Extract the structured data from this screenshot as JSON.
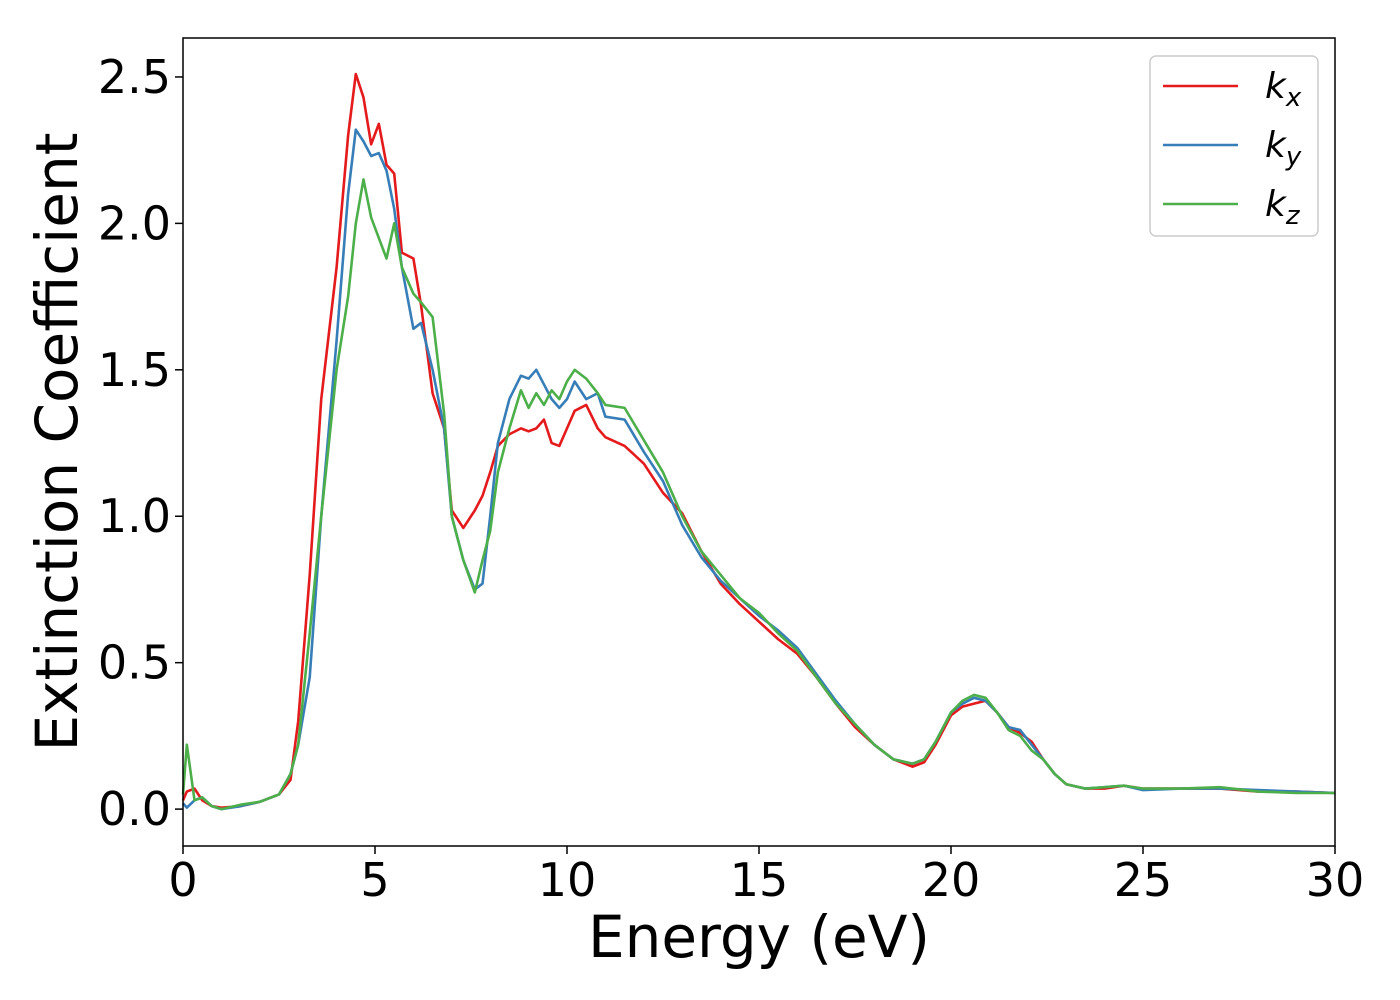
{
  "chart_data": {
    "type": "line",
    "xlabel": "Energy (eV)",
    "ylabel": "Extinction Coefficient",
    "x": [
      0,
      0.1,
      0.3,
      0.5,
      0.75,
      1,
      1.5,
      2,
      2.5,
      2.8,
      3,
      3.3,
      3.6,
      4,
      4.3,
      4.5,
      4.7,
      4.9,
      5.1,
      5.3,
      5.5,
      5.7,
      6,
      6.2,
      6.5,
      6.8,
      7,
      7.3,
      7.6,
      7.8,
      8,
      8.2,
      8.5,
      8.8,
      9,
      9.2,
      9.4,
      9.6,
      9.8,
      10,
      10.2,
      10.5,
      10.8,
      11,
      11.5,
      12,
      12.5,
      13,
      13.5,
      14,
      14.5,
      15,
      15.5,
      16,
      16.5,
      17,
      17.5,
      18,
      18.5,
      19,
      19.3,
      19.6,
      20,
      20.3,
      20.6,
      20.9,
      21.2,
      21.5,
      21.8,
      22.1,
      22.4,
      22.7,
      23,
      23.5,
      24,
      24.5,
      25,
      26,
      27,
      28,
      29,
      30
    ],
    "series": [
      {
        "name": "kx",
        "color": "#e41a1c",
        "values": [
          0.03,
          0.06,
          0.07,
          0.03,
          0.01,
          0.005,
          0.01,
          0.025,
          0.05,
          0.1,
          0.3,
          0.8,
          1.4,
          1.85,
          2.3,
          2.51,
          2.43,
          2.27,
          2.34,
          2.2,
          2.17,
          1.9,
          1.88,
          1.72,
          1.42,
          1.3,
          1.02,
          0.96,
          1.02,
          1.07,
          1.15,
          1.24,
          1.28,
          1.3,
          1.29,
          1.3,
          1.33,
          1.25,
          1.24,
          1.3,
          1.36,
          1.38,
          1.3,
          1.27,
          1.24,
          1.18,
          1.08,
          1.01,
          0.88,
          0.77,
          0.7,
          0.64,
          0.58,
          0.53,
          0.45,
          0.36,
          0.28,
          0.22,
          0.17,
          0.145,
          0.16,
          0.22,
          0.32,
          0.35,
          0.36,
          0.37,
          0.33,
          0.28,
          0.26,
          0.23,
          0.17,
          0.12,
          0.085,
          0.07,
          0.07,
          0.08,
          0.07,
          0.07,
          0.07,
          0.06,
          0.06,
          0.055
        ]
      },
      {
        "name": "ky",
        "color": "#377eb8",
        "values": [
          0.02,
          0.005,
          0.03,
          0.04,
          0.01,
          0.0,
          0.01,
          0.025,
          0.05,
          0.12,
          0.22,
          0.45,
          1.0,
          1.6,
          2.1,
          2.32,
          2.28,
          2.23,
          2.24,
          2.18,
          2.05,
          1.85,
          1.64,
          1.66,
          1.5,
          1.3,
          1.0,
          0.85,
          0.75,
          0.77,
          1.0,
          1.25,
          1.4,
          1.48,
          1.47,
          1.5,
          1.45,
          1.4,
          1.37,
          1.4,
          1.46,
          1.4,
          1.42,
          1.34,
          1.33,
          1.22,
          1.12,
          0.97,
          0.86,
          0.78,
          0.72,
          0.66,
          0.61,
          0.55,
          0.46,
          0.37,
          0.29,
          0.22,
          0.17,
          0.155,
          0.17,
          0.23,
          0.33,
          0.36,
          0.38,
          0.37,
          0.33,
          0.28,
          0.27,
          0.22,
          0.17,
          0.12,
          0.085,
          0.07,
          0.075,
          0.08,
          0.065,
          0.07,
          0.07,
          0.065,
          0.06,
          0.055
        ]
      },
      {
        "name": "kz",
        "color": "#4daf4a",
        "values": [
          0.05,
          0.22,
          0.03,
          0.04,
          0.01,
          0.0,
          0.015,
          0.025,
          0.05,
          0.12,
          0.22,
          0.6,
          1.0,
          1.5,
          1.75,
          2.0,
          2.15,
          2.02,
          1.95,
          1.88,
          2.0,
          1.85,
          1.76,
          1.73,
          1.68,
          1.35,
          1.0,
          0.85,
          0.74,
          0.85,
          0.95,
          1.15,
          1.3,
          1.43,
          1.37,
          1.42,
          1.38,
          1.43,
          1.4,
          1.46,
          1.5,
          1.47,
          1.42,
          1.38,
          1.37,
          1.26,
          1.15,
          1.0,
          0.88,
          0.8,
          0.72,
          0.67,
          0.6,
          0.54,
          0.45,
          0.36,
          0.29,
          0.22,
          0.17,
          0.155,
          0.17,
          0.23,
          0.33,
          0.37,
          0.39,
          0.38,
          0.33,
          0.27,
          0.25,
          0.2,
          0.17,
          0.12,
          0.085,
          0.07,
          0.075,
          0.08,
          0.07,
          0.07,
          0.075,
          0.06,
          0.055,
          0.055
        ]
      }
    ],
    "xlim": [
      0,
      30
    ],
    "ylim": [
      -0.126,
      2.633
    ],
    "xticks": [
      0,
      5,
      10,
      15,
      20,
      25,
      30
    ],
    "yticks": [
      {
        "value": 0,
        "label": "0.0"
      },
      {
        "value": 0.5,
        "label": "0.5"
      },
      {
        "value": 1,
        "label": "1.0"
      },
      {
        "value": 1.5,
        "label": "1.5"
      },
      {
        "value": 2,
        "label": "2.0"
      },
      {
        "value": 2.5,
        "label": "2.5"
      }
    ],
    "legend": "upper right"
  }
}
